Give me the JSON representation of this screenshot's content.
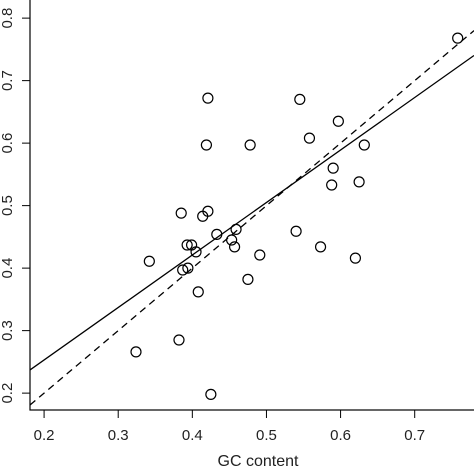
{
  "chart_data": {
    "type": "scatter",
    "x_label": "GC content",
    "x": [
      0.758,
      0.421,
      0.545,
      0.419,
      0.478,
      0.558,
      0.597,
      0.632,
      0.59,
      0.588,
      0.625,
      0.385,
      0.421,
      0.414,
      0.433,
      0.459,
      0.453,
      0.457,
      0.54,
      0.573,
      0.393,
      0.399,
      0.405,
      0.342,
      0.491,
      0.387,
      0.394,
      0.475,
      0.62,
      0.408,
      0.382,
      0.324,
      0.425
    ],
    "values": [
      0.768,
      0.672,
      0.67,
      0.597,
      0.597,
      0.608,
      0.635,
      0.597,
      0.56,
      0.533,
      0.538,
      0.488,
      0.491,
      0.483,
      0.454,
      0.462,
      0.445,
      0.434,
      0.459,
      0.434,
      0.437,
      0.437,
      0.426,
      0.411,
      0.421,
      0.397,
      0.4,
      0.382,
      0.416,
      0.362,
      0.285,
      0.266,
      0.198
    ],
    "color": "#000000",
    "reference_lines": [
      {
        "slope": 1,
        "intercept": 0,
        "style": "dashed"
      },
      {
        "slope": 0.84,
        "intercept": 0.085,
        "style": "solid"
      }
    ],
    "xlim": [
      0.181,
      0.78
    ],
    "ylim": [
      0.173,
      0.829
    ],
    "xticks": [
      0.2,
      0.3,
      0.4,
      0.5,
      0.6,
      0.7
    ],
    "yticks": [
      0.2,
      0.3,
      0.4,
      0.5,
      0.6,
      0.7,
      0.8
    ]
  }
}
